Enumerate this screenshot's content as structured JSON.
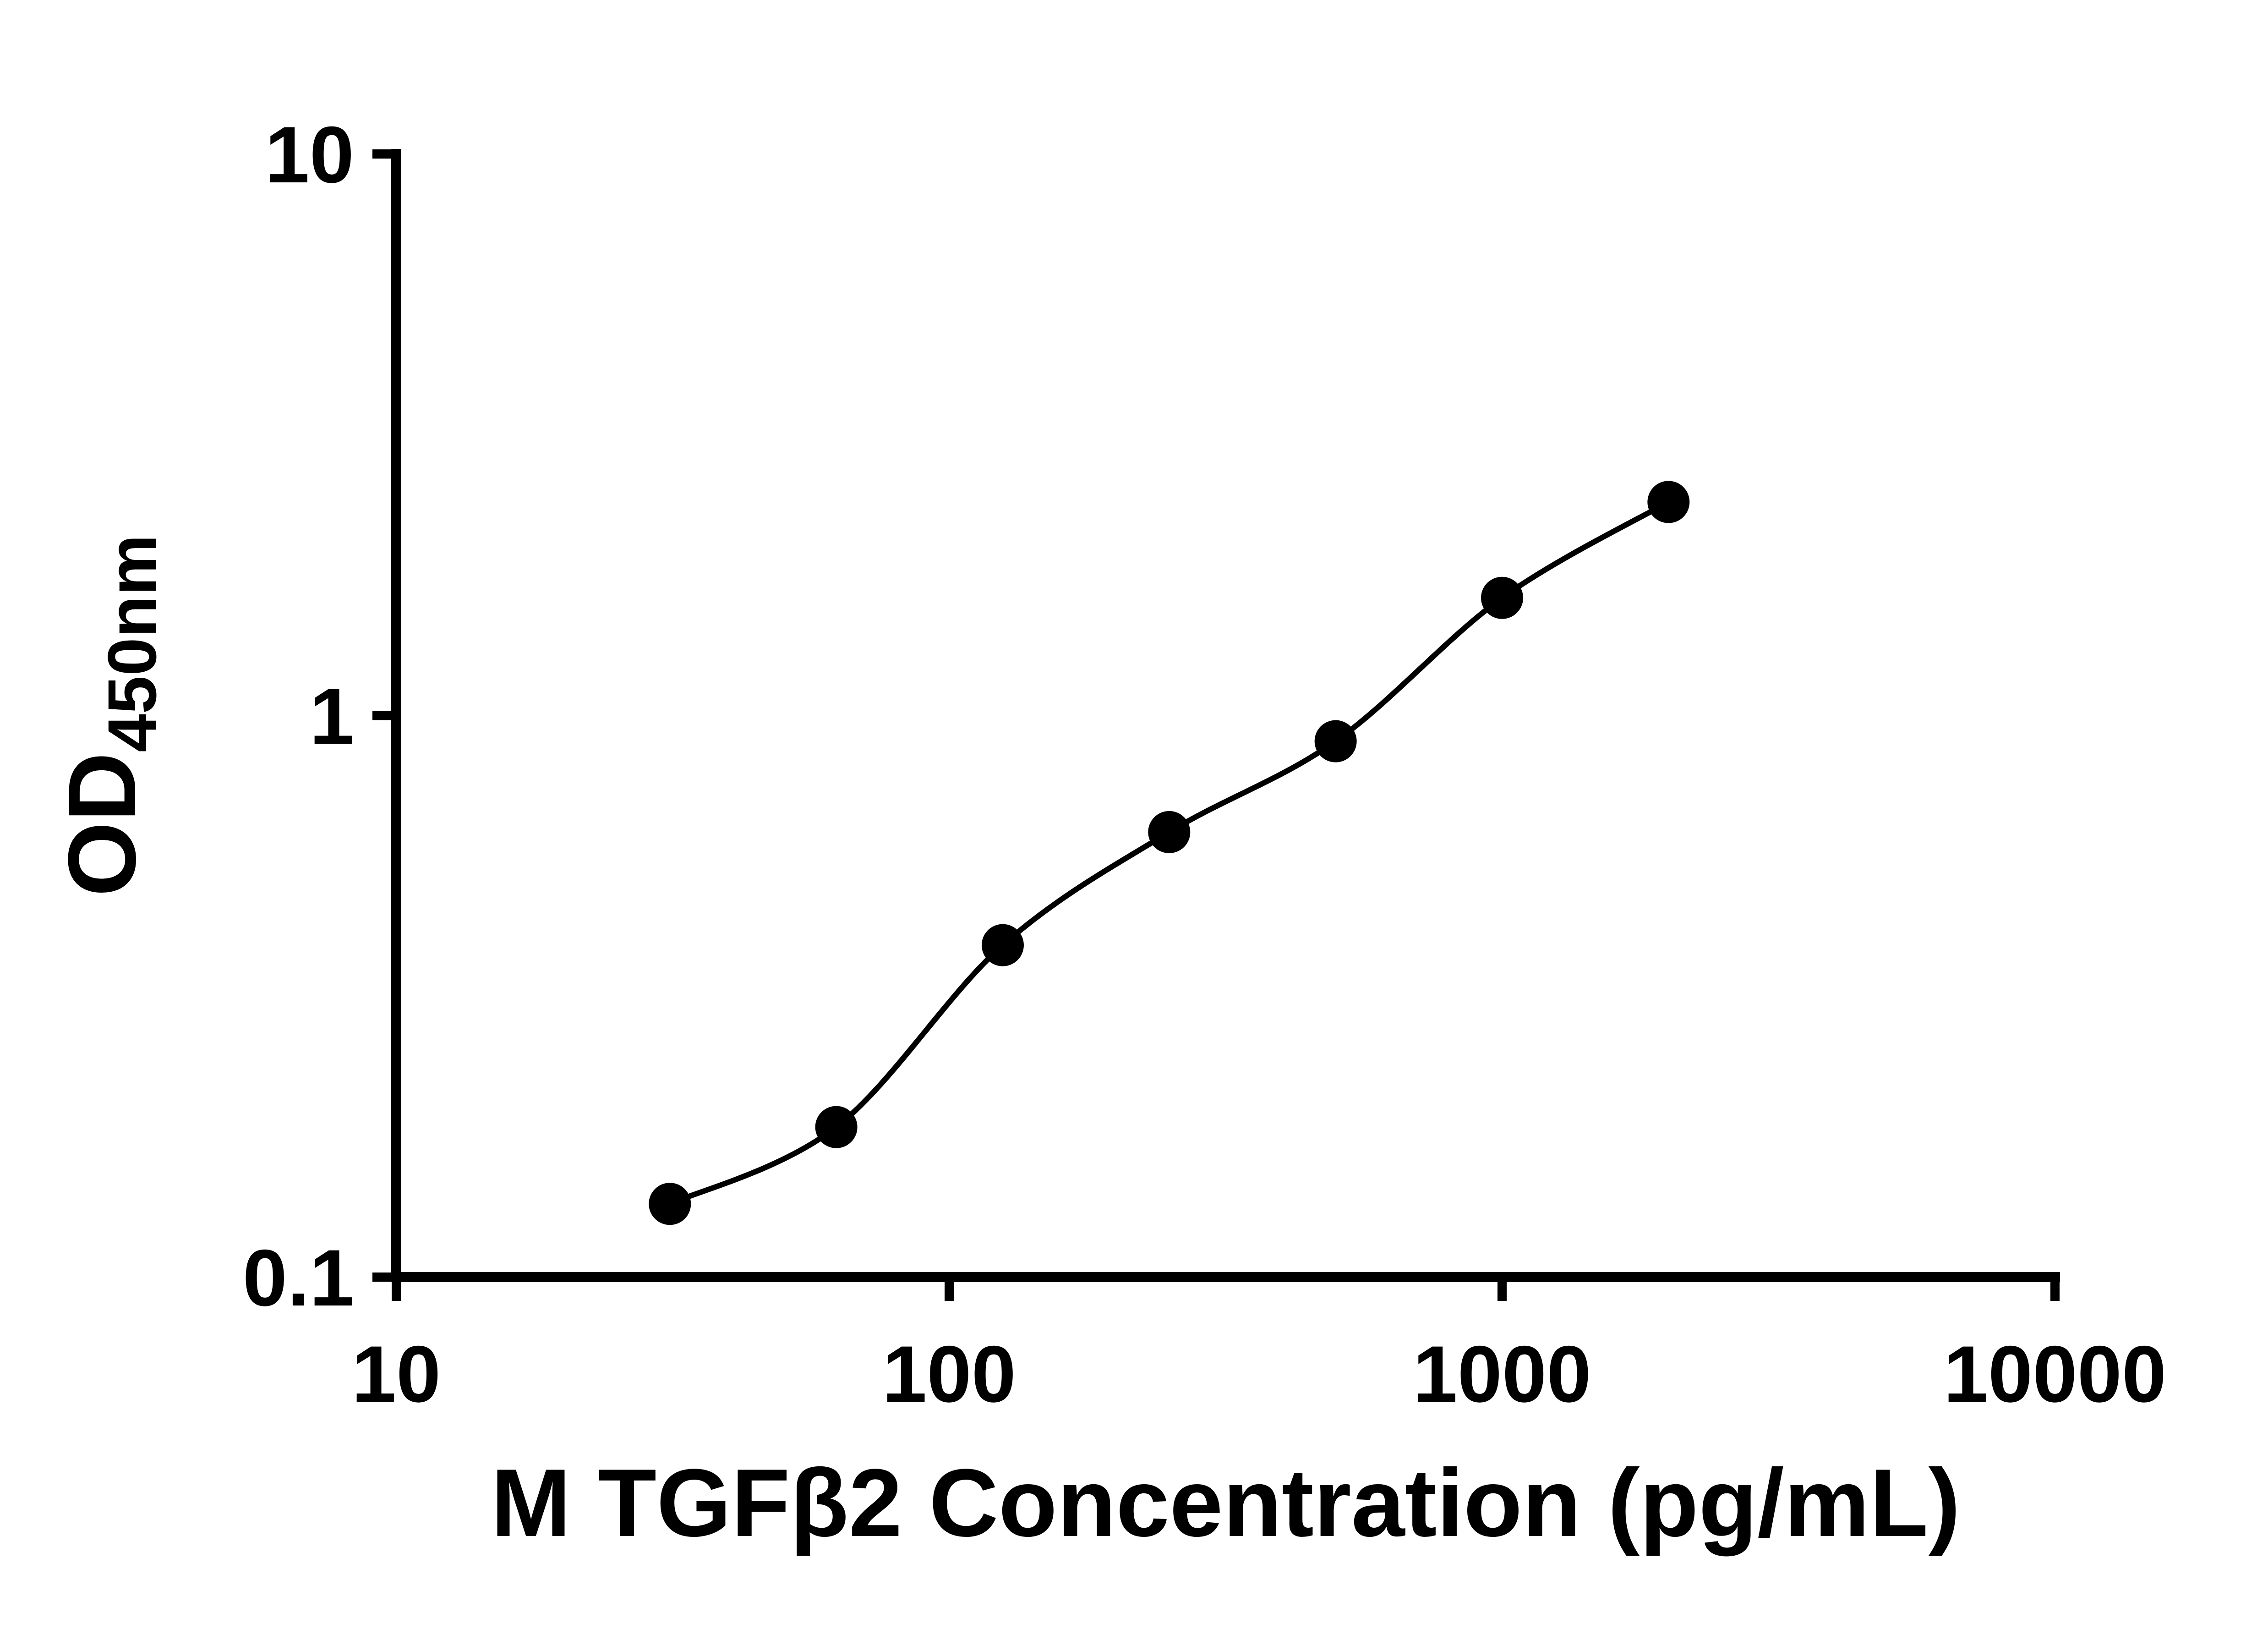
{
  "chart_data": {
    "type": "scatter",
    "title": "",
    "xlabel": "M TGFβ2 Concentration (pg/mL)",
    "ylabel_main": "OD",
    "ylabel_sub": "450nm",
    "x_scale": "log",
    "y_scale": "log",
    "xlim": [
      10,
      10000
    ],
    "ylim": [
      0.1,
      10
    ],
    "x_ticks": [
      10,
      100,
      1000,
      10000
    ],
    "x_tick_labels": [
      "10",
      "100",
      "1000",
      "10000"
    ],
    "y_ticks": [
      0.1,
      1,
      10
    ],
    "y_tick_labels": [
      "0.1",
      "1",
      "10"
    ],
    "x": [
      31.25,
      62.5,
      125,
      250,
      500,
      1000,
      2000
    ],
    "y": [
      0.135,
      0.185,
      0.39,
      0.62,
      0.9,
      1.62,
      2.4
    ],
    "grid": false,
    "legend": "none",
    "marker_color": "#000000",
    "line_color": "#000000",
    "axis_color": "#000000",
    "background": "#ffffff"
  }
}
